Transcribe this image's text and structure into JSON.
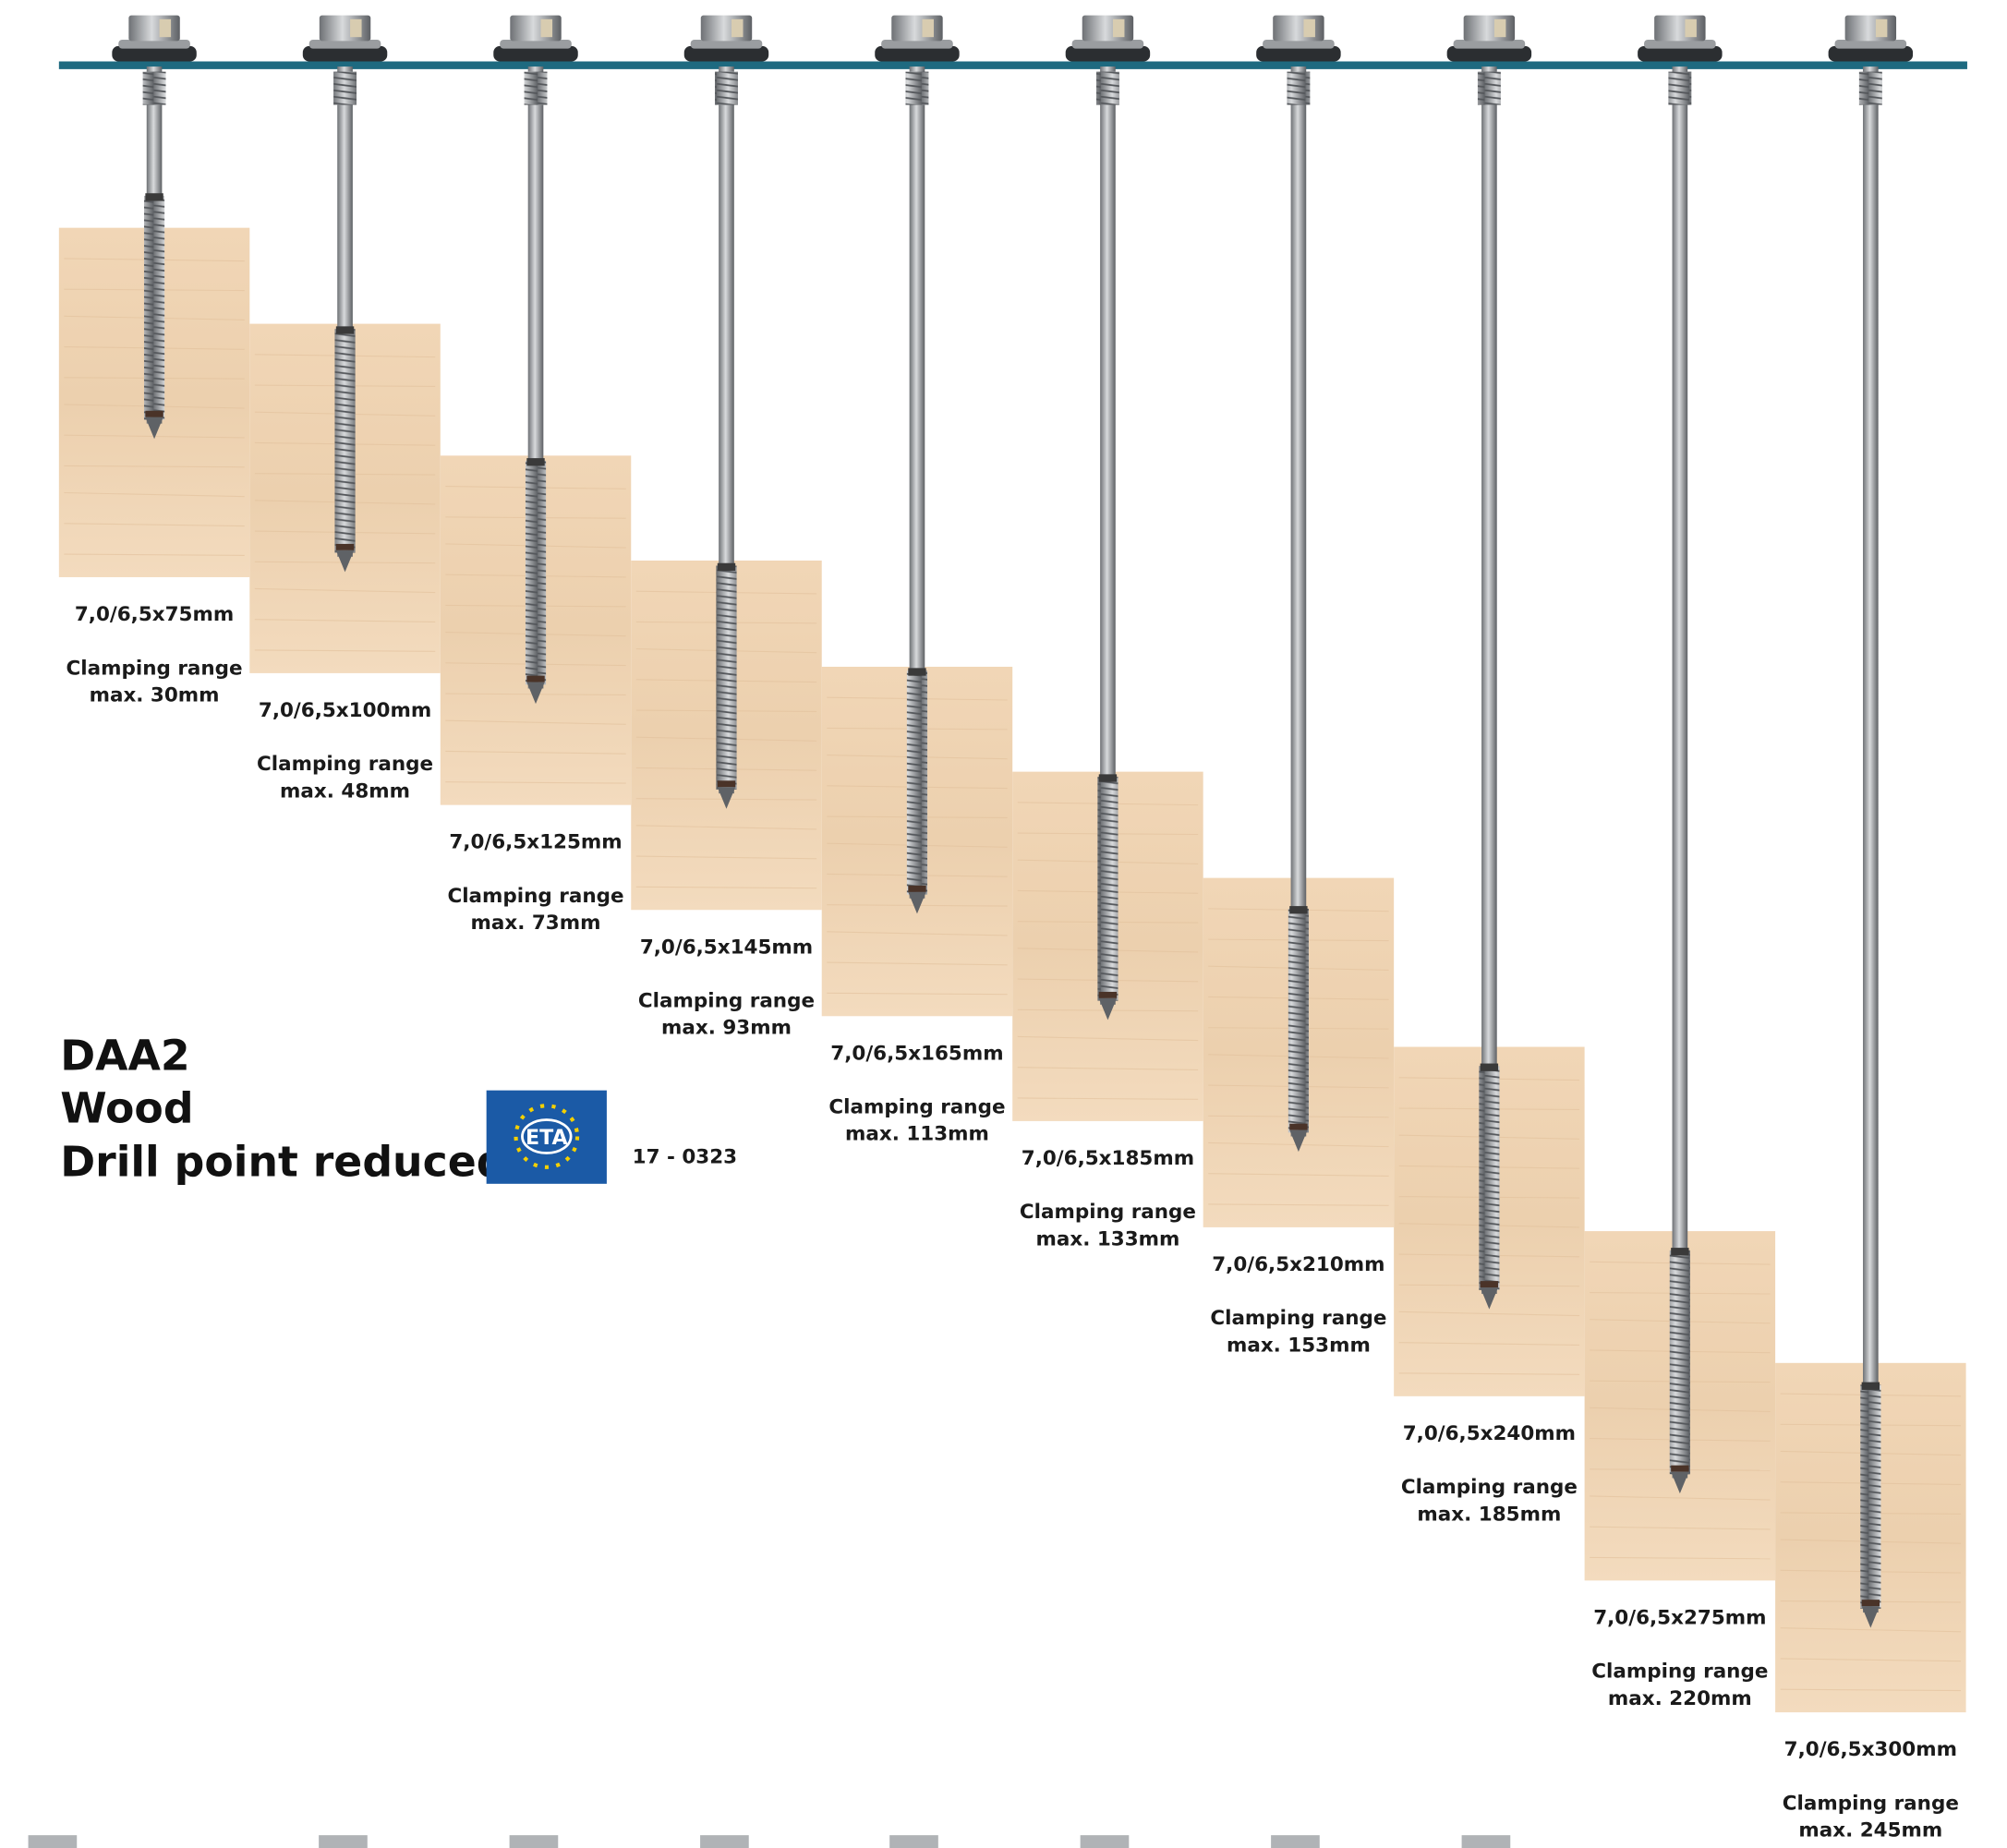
{
  "title_lines": [
    "DAA2",
    "Wood",
    "Drill point reduced"
  ],
  "approval": {
    "logo": "ETA",
    "number": "17 - 0323"
  },
  "products": [
    {
      "size": "7,0/6,5x75mm",
      "clamping": "Clamping range",
      "max": "max. 30mm"
    },
    {
      "size": "7,0/6,5x100mm",
      "clamping": "Clamping range",
      "max": "max. 48mm"
    },
    {
      "size": "7,0/6,5x125mm",
      "clamping": "Clamping range",
      "max": "max. 73mm"
    },
    {
      "size": "7,0/6,5x145mm",
      "clamping": "Clamping range",
      "max": "max. 93mm"
    },
    {
      "size": "7,0/6,5x165mm",
      "clamping": "Clamping range",
      "max": "max. 113mm"
    },
    {
      "size": "7,0/6,5x185mm",
      "clamping": "Clamping range",
      "max": "max. 133mm"
    },
    {
      "size": "7,0/6,5x210mm",
      "clamping": "Clamping range",
      "max": "max. 153mm"
    },
    {
      "size": "7,0/6,5x240mm",
      "clamping": "Clamping range",
      "max": "max. 185mm"
    },
    {
      "size": "7,0/6,5x275mm",
      "clamping": "Clamping range",
      "max": "max. 220mm"
    },
    {
      "size": "7,0/6,5x300mm",
      "clamping": "Clamping range",
      "max": "max. 245mm"
    }
  ]
}
